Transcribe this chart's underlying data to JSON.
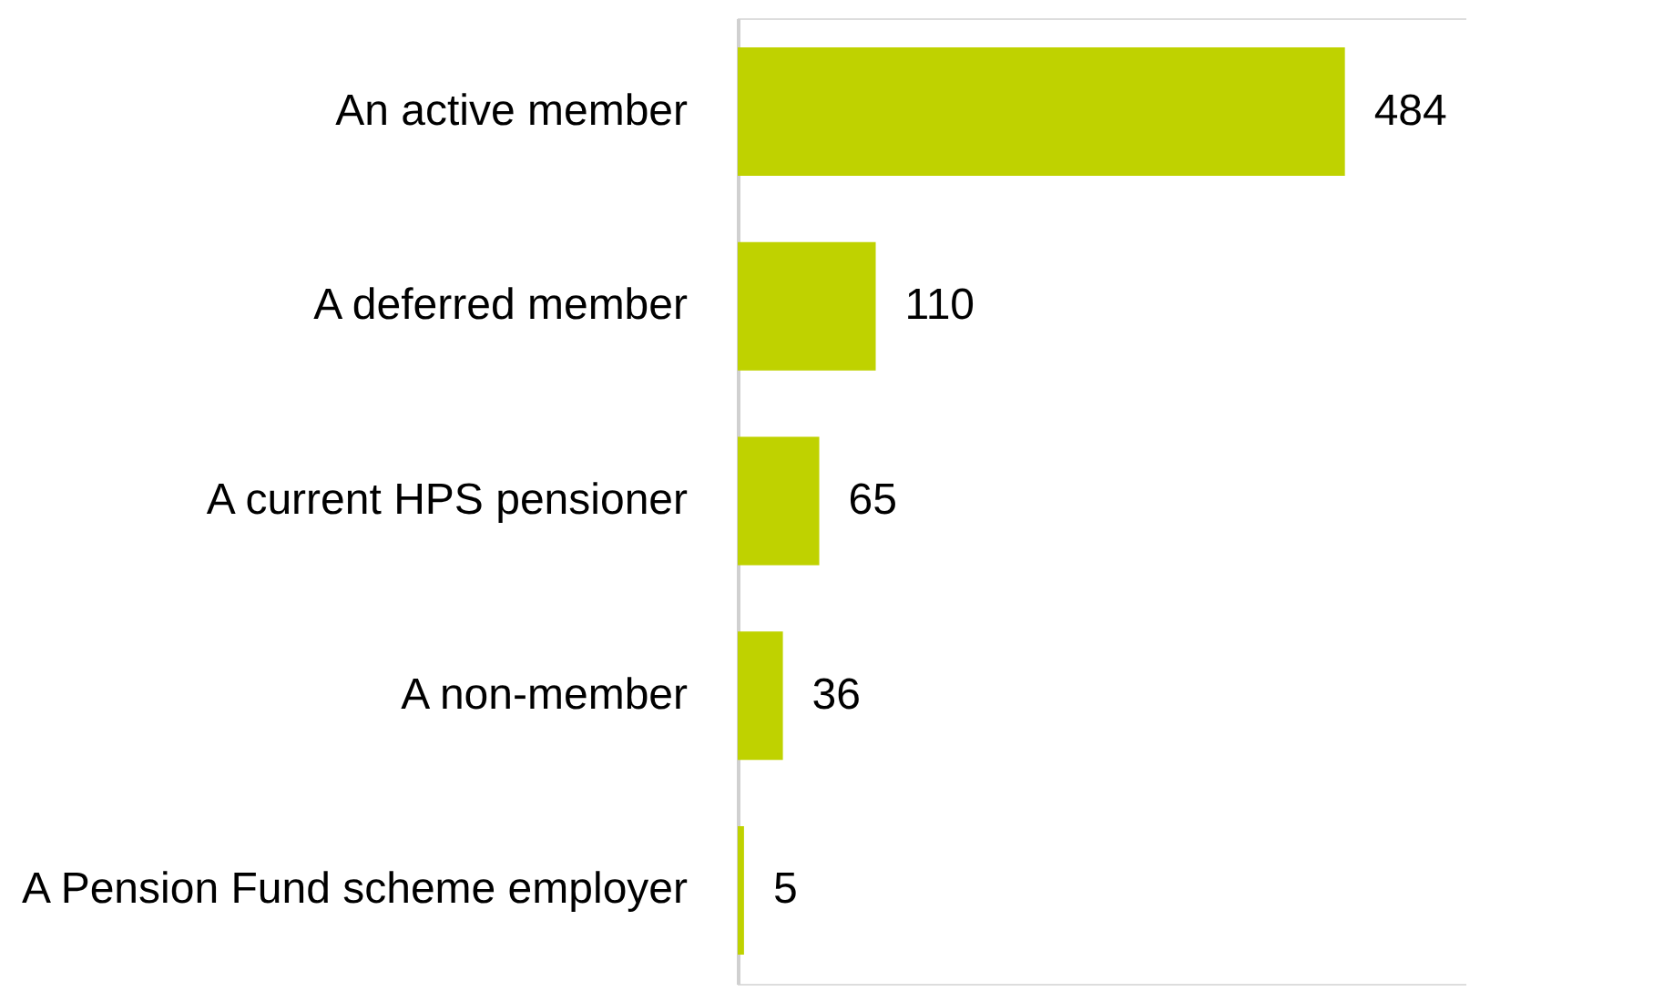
{
  "chart_data": {
    "type": "bar",
    "orientation": "horizontal",
    "categories": [
      "An active member",
      "A deferred member",
      "A current HPS pensioner",
      "A non-member",
      "A Pension Fund scheme employer"
    ],
    "values": [
      484,
      110,
      65,
      36,
      5
    ],
    "color": "#bfd200",
    "data_labels": true,
    "tick_labels": "y"
  }
}
